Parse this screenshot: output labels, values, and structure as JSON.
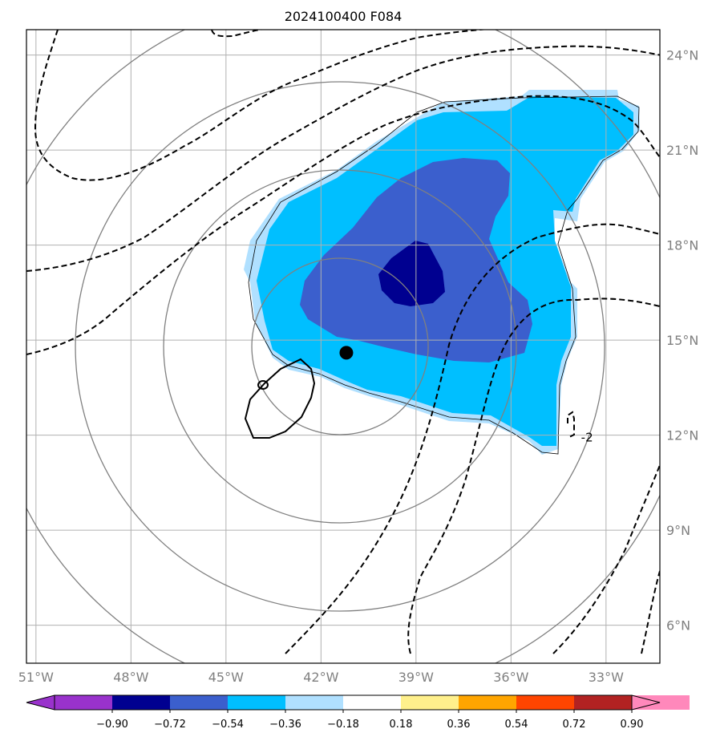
{
  "title": "2024100400 F084",
  "map": {
    "lon_range": [
      -51.3,
      -31.3
    ],
    "lat_range": [
      4.8,
      24.8
    ],
    "lon_ticks": [
      {
        "value": -51,
        "label": "51°W"
      },
      {
        "value": -48,
        "label": "48°W"
      },
      {
        "value": -45,
        "label": "45°W"
      },
      {
        "value": -42,
        "label": "42°W"
      },
      {
        "value": -39,
        "label": "39°W"
      },
      {
        "value": -36,
        "label": "36°W"
      },
      {
        "value": -33,
        "label": "33°W"
      }
    ],
    "lat_ticks": [
      {
        "value": 24,
        "label": "24°N"
      },
      {
        "value": 21,
        "label": "21°N"
      },
      {
        "value": 18,
        "label": "18°N"
      },
      {
        "value": 15,
        "label": "15°N"
      },
      {
        "value": 12,
        "label": "12°N"
      },
      {
        "value": 9,
        "label": "9°N"
      },
      {
        "value": 6,
        "label": "6°N"
      }
    ],
    "grid": true,
    "center_marker": {
      "lon": -41.2,
      "lat": 14.6
    },
    "range_rings_center": {
      "lon": -41.4,
      "lat": 14.8
    },
    "contour_label": "-2",
    "contour_label_pos": {
      "lon": -33.6,
      "lat": 11.8
    }
  },
  "colorbar": {
    "ticks": [
      "−0.90",
      "−0.72",
      "−0.54",
      "−0.36",
      "−0.18",
      "0.18",
      "0.36",
      "0.54",
      "0.72",
      "0.90"
    ],
    "colors": {
      "under": "#9932cc",
      "bins": [
        "#000090",
        "#3b5fcd",
        "#00bfff",
        "#b0e0ff",
        "#ffffff",
        "#fff08c",
        "#ffa500",
        "#ff4500",
        "#b22222"
      ],
      "over": "#ff88bb"
    }
  },
  "colors": {
    "axis": "#000000",
    "grid": "#b0b0b0",
    "ring": "#808080",
    "ticklabel": "#808080"
  }
}
